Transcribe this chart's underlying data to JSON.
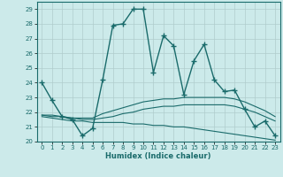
{
  "title": "",
  "xlabel": "Humidex (Indice chaleur)",
  "xlim": [
    -0.5,
    23.5
  ],
  "ylim": [
    20,
    29.5
  ],
  "yticks": [
    20,
    21,
    22,
    23,
    24,
    25,
    26,
    27,
    28,
    29
  ],
  "xticks": [
    0,
    1,
    2,
    3,
    4,
    5,
    6,
    7,
    8,
    9,
    10,
    11,
    12,
    13,
    14,
    15,
    16,
    17,
    18,
    19,
    20,
    21,
    22,
    23
  ],
  "background_color": "#cceaea",
  "line_color": "#1a6b6b",
  "grid_color": "#b0cccc",
  "series": [
    {
      "x": [
        0,
        1,
        2,
        3,
        4,
        5,
        6,
        7,
        8,
        9,
        10,
        11,
        12,
        13,
        14,
        15,
        16,
        17,
        18,
        19,
        20,
        21,
        22,
        23
      ],
      "y": [
        24.0,
        22.8,
        21.7,
        21.5,
        20.4,
        20.9,
        24.2,
        27.9,
        28.0,
        29.0,
        29.0,
        24.7,
        27.2,
        26.5,
        23.2,
        25.5,
        26.6,
        24.2,
        23.4,
        23.5,
        22.2,
        21.0,
        21.4,
        20.4
      ],
      "style": "-",
      "marker": "+",
      "linewidth": 1.0,
      "markersize": 4
    },
    {
      "x": [
        0,
        1,
        2,
        3,
        4,
        5,
        6,
        7,
        8,
        9,
        10,
        11,
        12,
        13,
        14,
        15,
        16,
        17,
        18,
        19,
        20,
        21,
        22,
        23
      ],
      "y": [
        21.8,
        21.8,
        21.7,
        21.6,
        21.6,
        21.6,
        21.9,
        22.1,
        22.3,
        22.5,
        22.7,
        22.8,
        22.9,
        22.9,
        23.0,
        23.0,
        23.0,
        23.0,
        23.0,
        22.9,
        22.7,
        22.4,
        22.1,
        21.7
      ],
      "style": "-",
      "marker": null,
      "linewidth": 0.8,
      "markersize": 0
    },
    {
      "x": [
        0,
        1,
        2,
        3,
        4,
        5,
        6,
        7,
        8,
        9,
        10,
        11,
        12,
        13,
        14,
        15,
        16,
        17,
        18,
        19,
        20,
        21,
        22,
        23
      ],
      "y": [
        21.7,
        21.6,
        21.5,
        21.4,
        21.4,
        21.3,
        21.3,
        21.3,
        21.3,
        21.2,
        21.2,
        21.1,
        21.1,
        21.0,
        21.0,
        20.9,
        20.8,
        20.7,
        20.6,
        20.5,
        20.4,
        20.3,
        20.2,
        20.1
      ],
      "style": "-",
      "marker": null,
      "linewidth": 0.8,
      "markersize": 0
    },
    {
      "x": [
        0,
        1,
        2,
        3,
        4,
        5,
        6,
        7,
        8,
        9,
        10,
        11,
        12,
        13,
        14,
        15,
        16,
        17,
        18,
        19,
        20,
        21,
        22,
        23
      ],
      "y": [
        21.8,
        21.7,
        21.7,
        21.6,
        21.5,
        21.5,
        21.6,
        21.7,
        21.9,
        22.0,
        22.2,
        22.3,
        22.4,
        22.4,
        22.5,
        22.5,
        22.5,
        22.5,
        22.5,
        22.4,
        22.2,
        22.0,
        21.7,
        21.4
      ],
      "style": "-",
      "marker": null,
      "linewidth": 0.8,
      "markersize": 0
    }
  ]
}
